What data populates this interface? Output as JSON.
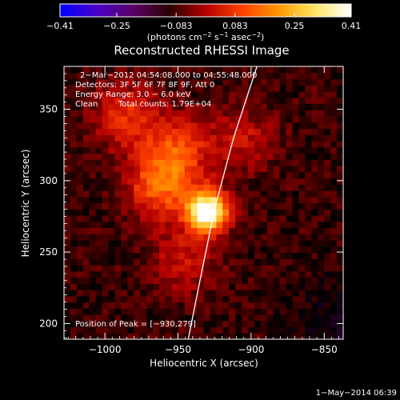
{
  "colorbar": {
    "ticks": [
      "−0.41",
      "−0.25",
      "−0.083",
      "0.083",
      "0.25",
      "0.41"
    ],
    "stops": [
      "#0000ff",
      "#4a00c8",
      "#5a0068",
      "#2a0000",
      "#b40000",
      "#ff4000",
      "#ff9600",
      "#ffe664",
      "#ffffff"
    ],
    "units_main": "(photons cm",
    "units_exp1": "−2",
    "units_mid": " s",
    "units_exp2": "−1",
    "units_mid2": " asec",
    "units_exp3": "−2",
    "units_end": ")"
  },
  "title": "Reconstructed RHESSI Image",
  "info": {
    "line1": "2−Mar−2012 04:54:08.000 to 04:55:48.000",
    "line2": "Detectors: 3F 5F 6F 7F 8F 9F, Att 0",
    "line3": "Energy Range: 3.0 − 6.0 keV",
    "line4_a": "Clean",
    "line4_b": "Total counts: 1.79E+04"
  },
  "peak_label": "Position of Peak = [−930,279]",
  "footer_date": "1−May−2014 06:39",
  "chart_data": {
    "type": "heatmap",
    "title": "Reconstructed RHESSI Image",
    "xlabel": "Heliocentric X (arcsec)",
    "ylabel": "Heliocentric Y (arcsec)",
    "xlim": [
      -1028,
      -837
    ],
    "ylim": [
      189,
      380
    ],
    "xticks": [
      -1000,
      -950,
      -900,
      -850
    ],
    "xtick_labels": [
      "−1000",
      "−950",
      "−900",
      "−850"
    ],
    "yticks": [
      200,
      250,
      300,
      350
    ],
    "ytick_labels": [
      "200",
      "250",
      "300",
      "350"
    ],
    "color_range": [
      -0.41,
      0.41
    ],
    "peak": [
      -930,
      279
    ],
    "sources": [
      {
        "x": -930,
        "y": 279,
        "amplitude": 0.41
      },
      {
        "x": -962,
        "y": 296,
        "amplitude": 0.17
      },
      {
        "x": -950,
        "y": 322,
        "amplitude": 0.14
      },
      {
        "x": -985,
        "y": 345,
        "amplitude": 0.12
      },
      {
        "x": -945,
        "y": 245,
        "amplitude": 0.09
      },
      {
        "x": -905,
        "y": 330,
        "amplitude": 0.08
      }
    ],
    "limb_curve": [
      [
        -943,
        189
      ],
      [
        -935,
        230
      ],
      [
        -925,
        280
      ],
      [
        -912,
        330
      ],
      [
        -896,
        380
      ]
    ]
  }
}
